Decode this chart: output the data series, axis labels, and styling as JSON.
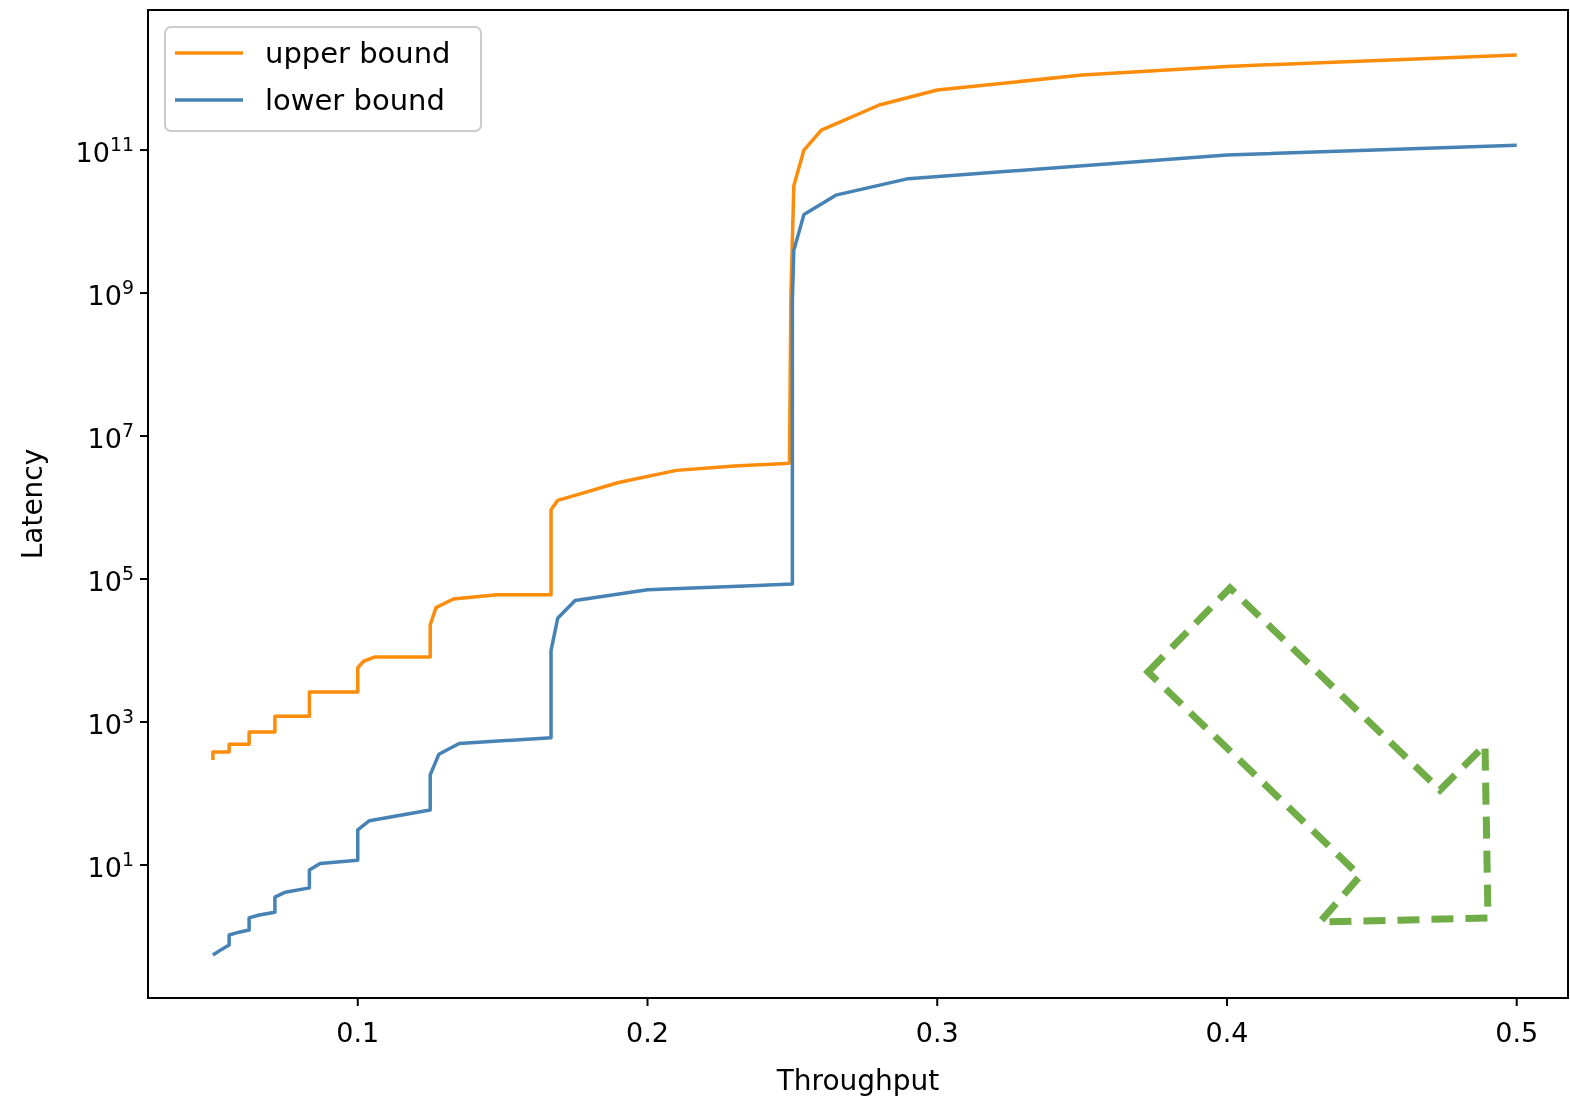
{
  "chart_data": {
    "type": "line",
    "xlabel": "Throughput",
    "ylabel": "Latency",
    "log": "y",
    "grid": false,
    "legend": "top left",
    "marker": "none",
    "line_style": "solid",
    "xlim": [
      0.0276,
      0.5177
    ],
    "ylim": [
      0.138,
      9100000000000.0
    ],
    "xticks": [
      0.1,
      0.2,
      0.3,
      0.4,
      0.5
    ],
    "yticks": [
      {
        "value": 10,
        "label": "10$^{1}$"
      },
      {
        "value": 1000,
        "label": "10$^{3}$"
      },
      {
        "value": 100000,
        "label": "10$^{5}$"
      },
      {
        "value": 10000000,
        "label": "10$^{7}$"
      },
      {
        "value": 1000000000,
        "label": "10$^{9}$"
      },
      {
        "value": 100000000000,
        "label": "10$^{11}$"
      }
    ],
    "series": [
      {
        "name": "upper bound",
        "color": "#fd8c0a",
        "x": [
          0.05,
          0.05,
          0.0556,
          0.0556,
          0.0625,
          0.0625,
          0.0714,
          0.0714,
          0.0833,
          0.0833,
          0.1,
          0.1,
          0.102,
          0.106,
          0.125,
          0.125,
          0.127,
          0.133,
          0.148,
          0.1667,
          0.1667,
          0.169,
          0.175,
          0.19,
          0.21,
          0.23,
          0.249,
          0.2495,
          0.2505,
          0.254,
          0.26,
          0.28,
          0.3,
          0.35,
          0.4,
          0.5
        ],
        "values": [
          295,
          380,
          380,
          490,
          490,
          724,
          724,
          1200,
          1200,
          2630,
          2630,
          5750,
          7080,
          8130,
          8130,
          22900,
          39800,
          52500,
          60300,
          60300,
          933000,
          1260000,
          1480000,
          2240000,
          3310000,
          3800000,
          4170000,
          1000000000.0,
          31600000000.0,
          100000000000.0,
          190000000000.0,
          427000000000.0,
          692000000000.0,
          1120000000000.0,
          1480000000000.0,
          2140000000000.0
        ]
      },
      {
        "name": "lower bound",
        "color": "#4682b4",
        "x": [
          0.05,
          0.053,
          0.0556,
          0.0556,
          0.059,
          0.0625,
          0.0625,
          0.066,
          0.0714,
          0.0714,
          0.075,
          0.0833,
          0.0833,
          0.087,
          0.1,
          0.1,
          0.104,
          0.125,
          0.125,
          0.128,
          0.135,
          0.1667,
          0.1667,
          0.169,
          0.175,
          0.2,
          0.25,
          0.25,
          0.2505,
          0.254,
          0.265,
          0.29,
          0.4,
          0.5
        ],
        "values": [
          0.55,
          0.66,
          0.76,
          1.05,
          1.15,
          1.23,
          1.82,
          2.0,
          2.19,
          3.55,
          4.17,
          4.79,
          8.51,
          10.5,
          11.7,
          30.9,
          41.7,
          58.9,
          182,
          355,
          501,
          603,
          10000,
          28200,
          50100,
          70800,
          85100,
          794000000.0,
          3980000000.0,
          12600000000.0,
          23400000000.0,
          39800000000.0,
          85100000000.0,
          117000000000.0
        ]
      }
    ]
  }
}
